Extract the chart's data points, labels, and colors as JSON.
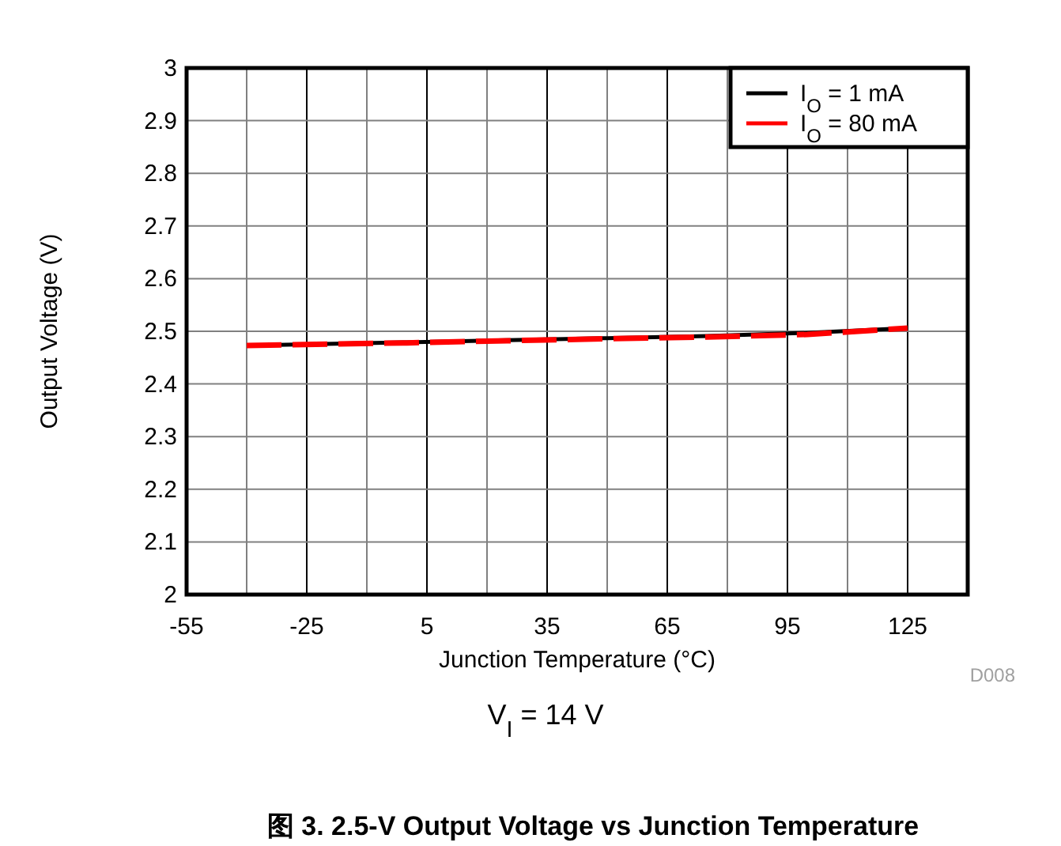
{
  "chart_data": {
    "type": "line",
    "title": "图 3. 2.5-V Output Voltage vs Junction Temperature",
    "xlabel": "Junction Temperature (°C)",
    "ylabel": "Output Voltage (V)",
    "annotations": [
      "V$_{I}$ = 14 V",
      "D008"
    ],
    "x": [
      -40,
      0,
      25,
      50,
      75,
      100,
      125
    ],
    "series": [
      {
        "name": "I$_{O}$ = 1 mA",
        "color": "#000000",
        "line_style": "solid",
        "values": [
          2.473,
          2.479,
          2.483,
          2.487,
          2.491,
          2.497,
          2.506
        ]
      },
      {
        "name": "I$_{O}$ = 80 mA",
        "color": "#ff0000",
        "line_style": "dashed",
        "values": [
          2.473,
          2.478,
          2.482,
          2.486,
          2.489,
          2.494,
          2.506
        ]
      }
    ],
    "xlim": [
      -55,
      140
    ],
    "xticks": [
      -55,
      -25,
      5,
      35,
      65,
      95,
      125
    ],
    "ylim": [
      2,
      3
    ],
    "yticks": [
      2,
      2.1,
      2.2,
      2.3,
      2.4,
      2.5,
      2.6,
      2.7,
      2.8,
      2.9,
      3
    ],
    "grid": true,
    "legend": "top right",
    "marker": "none"
  }
}
